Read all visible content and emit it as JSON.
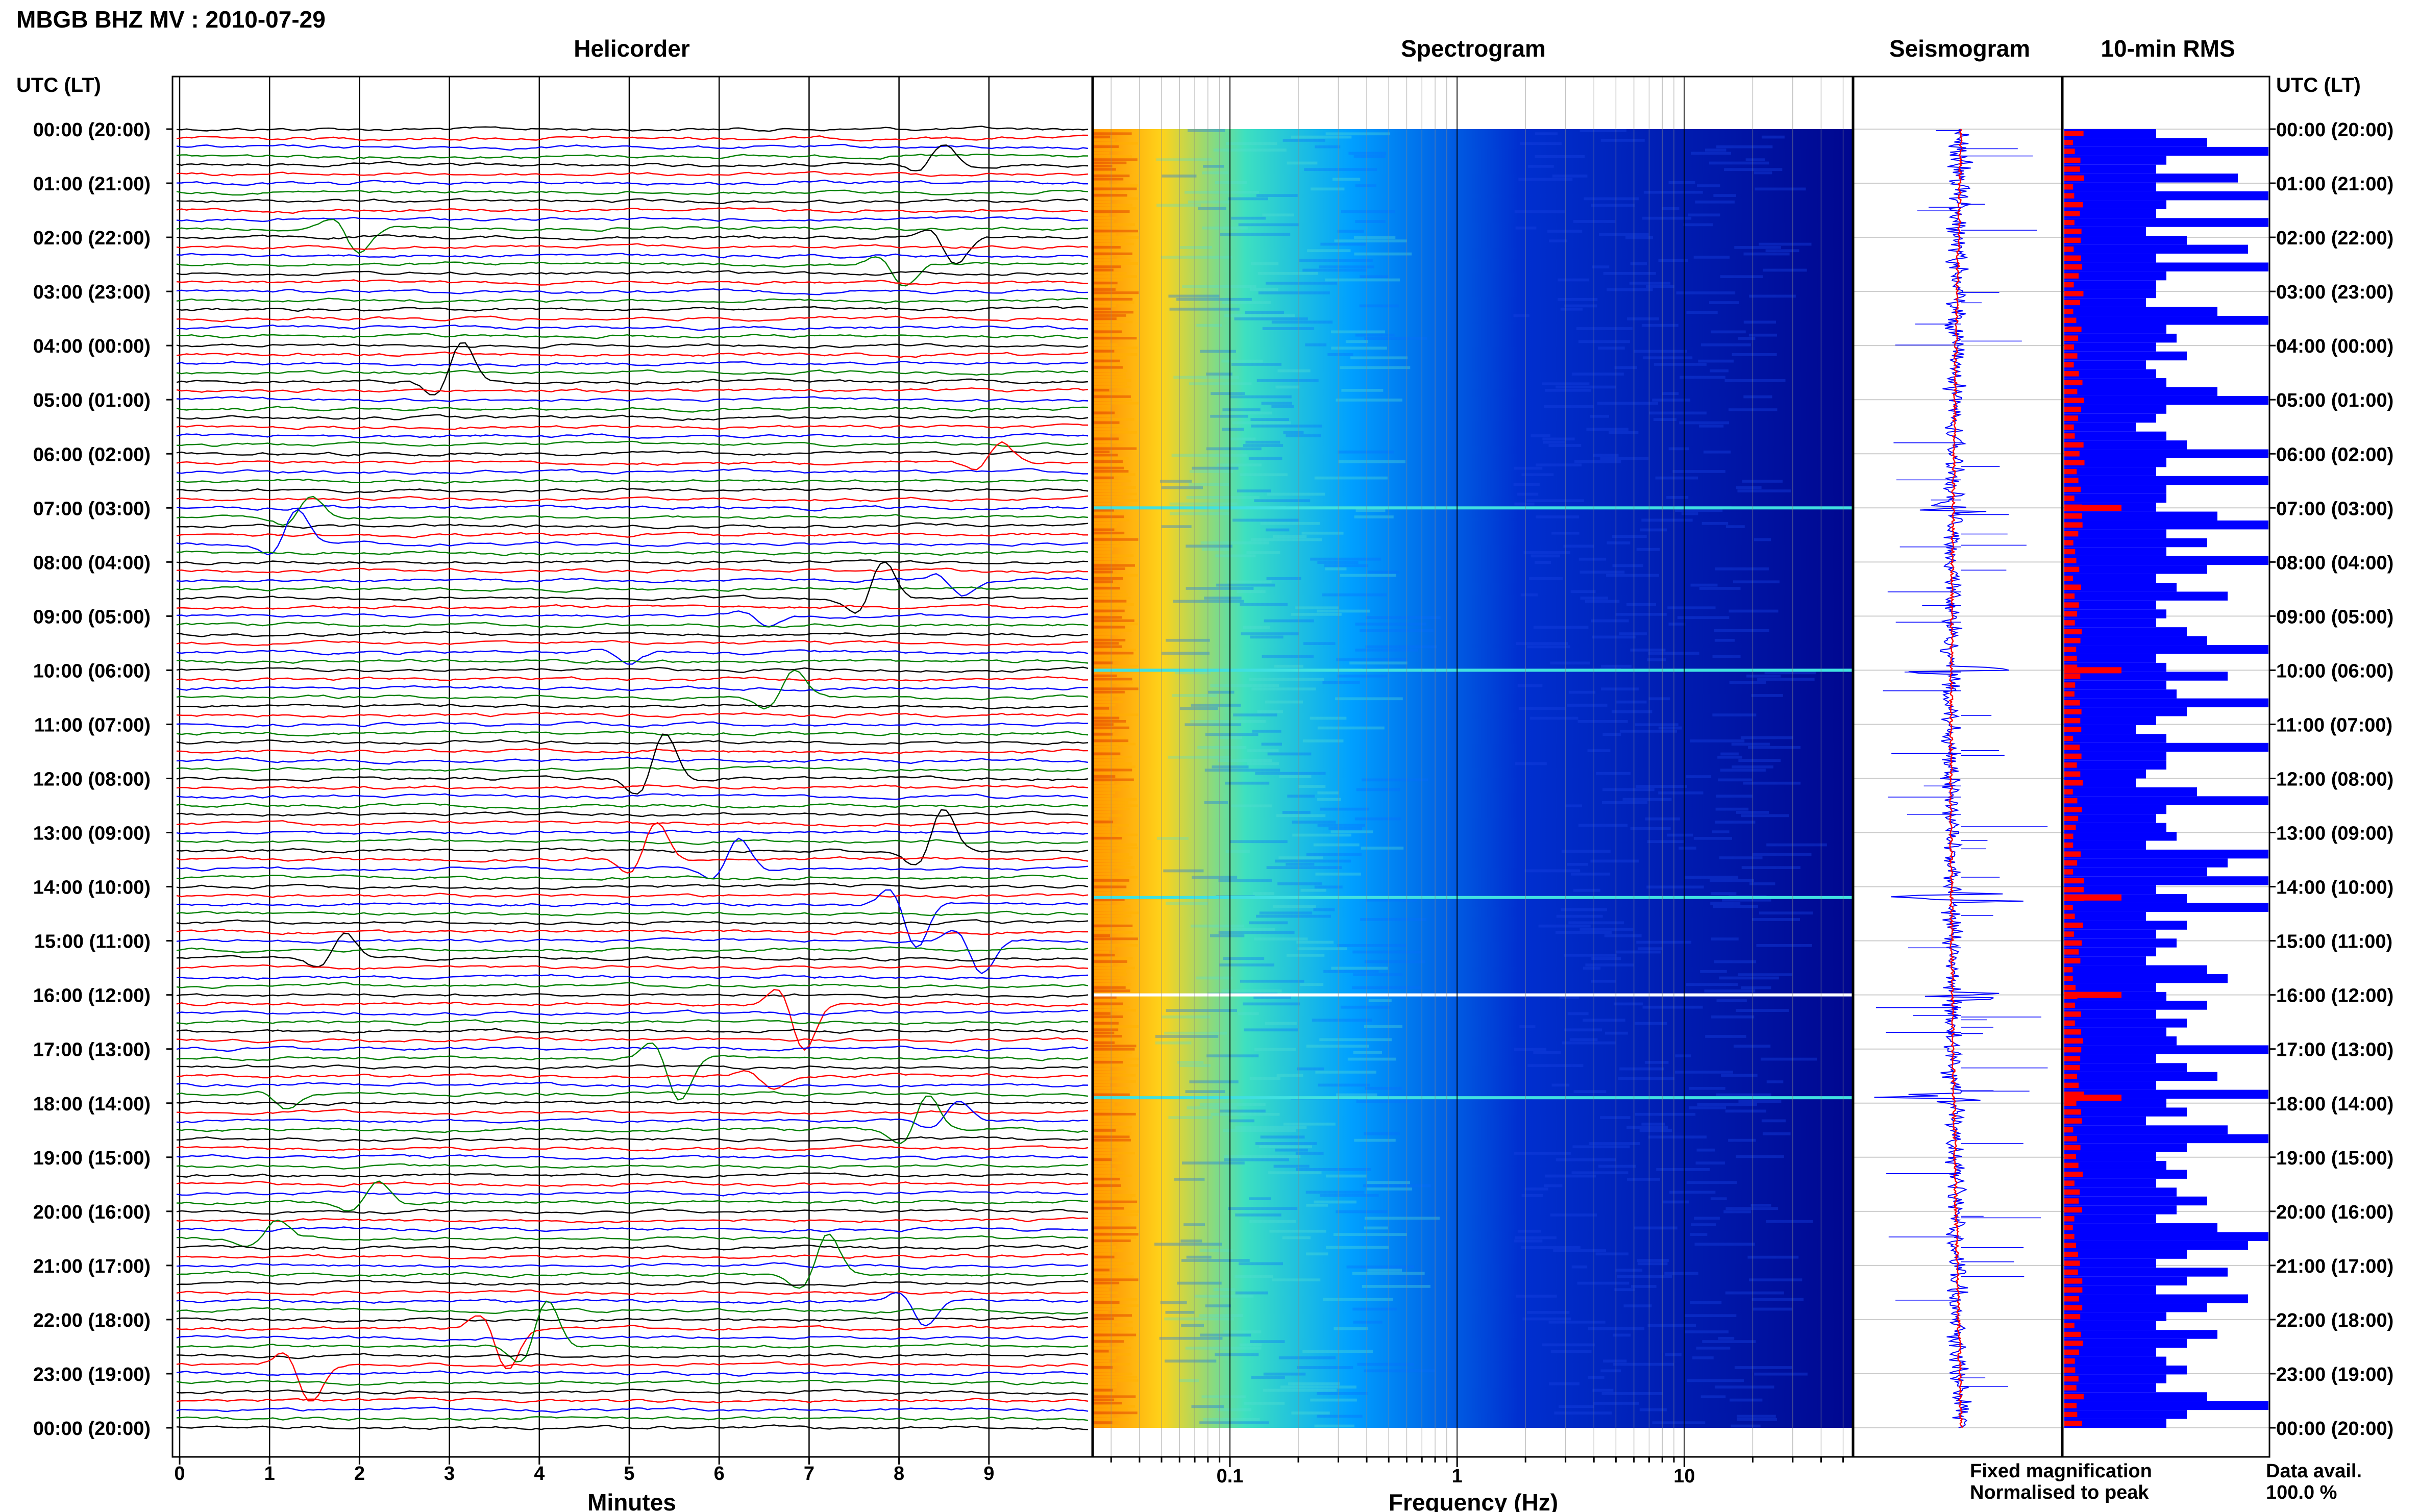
{
  "header": {
    "title": "MBGB BHZ MV : 2010-07-29",
    "utc_left": "UTC (LT)",
    "utc_right": "UTC (LT)"
  },
  "panels": {
    "helicorder": "Helicorder",
    "spectrogram": "Spectrogram",
    "seismogram": "Seismogram",
    "rms": "10-min RMS"
  },
  "axes": {
    "minutes_label": "Minutes",
    "frequency_label": "Frequency (Hz)"
  },
  "legend": {
    "fixed": "Fixed magnification",
    "fixed_color": "#0000ff",
    "normalised": "Normalised to peak",
    "normalised_color": "#ff0000"
  },
  "footer": {
    "data_avail_label": "Data avail.",
    "data_avail_value": "100.0 %"
  },
  "chart_data": {
    "type": "helicorder",
    "hour_labels": [
      "00:00 (20:00)",
      "01:00 (21:00)",
      "02:00 (22:00)",
      "03:00 (23:00)",
      "04:00 (00:00)",
      "05:00 (01:00)",
      "06:00 (02:00)",
      "07:00 (03:00)",
      "08:00 (04:00)",
      "09:00 (05:00)",
      "10:00 (06:00)",
      "11:00 (07:00)",
      "12:00 (08:00)",
      "13:00 (09:00)",
      "14:00 (10:00)",
      "15:00 (11:00)",
      "16:00 (12:00)",
      "17:00 (13:00)",
      "18:00 (14:00)",
      "19:00 (15:00)",
      "20:00 (16:00)",
      "21:00 (17:00)",
      "22:00 (18:00)",
      "23:00 (19:00)",
      "00:00 (20:00)"
    ],
    "minute_ticks": [
      "0",
      "1",
      "2",
      "3",
      "4",
      "5",
      "6",
      "7",
      "8",
      "9"
    ],
    "frequency_ticks": [
      "0.1",
      "1",
      "10"
    ],
    "trace_colors": [
      "#000000",
      "#ff0000",
      "#0000ff",
      "#008000"
    ],
    "traces_per_hour": 6,
    "event_times_utc_hours": [
      7.0,
      10.0,
      14.2,
      16.0,
      17.9
    ],
    "spectrogram_colors": [
      "#ff8a00",
      "#ffd21a",
      "#3ee0c0",
      "#00a0ff",
      "#0030d0",
      "#00078f"
    ],
    "rms_fixed_color": "#0000ff",
    "rms_normalised_color": "#ff0000",
    "rms_fixed_levels": [
      0.45,
      0.7,
      1.0,
      0.5,
      0.45,
      0.85,
      0.45,
      1.0,
      0.5,
      0.45,
      1.0,
      0.4,
      0.6,
      0.9,
      0.45,
      1.0,
      0.5,
      0.45,
      0.45,
      0.4,
      0.75,
      1.0,
      0.5,
      0.55,
      0.45,
      0.6,
      0.4,
      0.45,
      0.5,
      0.75,
      1.0,
      0.5,
      0.45,
      0.35,
      0.5,
      0.6,
      1.0,
      0.5,
      0.45,
      1.0,
      0.5,
      0.5,
      0.45,
      0.75,
      1.0,
      0.5,
      0.7,
      0.5,
      1.0,
      0.7,
      0.45,
      0.55,
      0.8,
      0.45,
      0.5,
      0.45,
      0.6,
      0.7,
      1.0,
      0.45,
      0.5,
      0.8,
      0.5,
      0.55,
      1.0,
      0.6,
      0.45,
      0.35,
      0.5,
      1.0,
      0.5,
      0.5,
      0.4,
      0.35,
      0.65,
      1.0,
      0.5,
      0.45,
      0.5,
      0.55,
      0.4,
      1.0,
      0.8,
      0.7,
      1.0,
      0.45,
      0.6,
      1.0,
      0.4,
      0.6,
      0.45,
      0.55,
      0.45,
      0.4,
      0.7,
      0.8,
      0.45,
      0.5,
      0.7,
      0.45,
      0.6,
      0.5,
      0.55,
      1.0,
      0.45,
      0.6,
      0.75,
      0.45,
      1.0,
      0.5,
      0.6,
      0.4,
      0.8,
      1.0,
      0.6,
      0.45,
      0.5,
      0.6,
      0.45,
      0.55,
      0.7,
      0.55,
      0.45,
      0.75,
      1.0,
      0.9,
      0.6,
      0.45,
      0.8,
      0.6,
      0.45,
      0.9,
      0.7,
      0.5,
      0.45,
      0.75,
      0.6,
      0.45,
      0.5,
      0.6,
      0.5,
      0.45,
      0.7,
      1.0,
      0.6,
      0.5
    ]
  }
}
